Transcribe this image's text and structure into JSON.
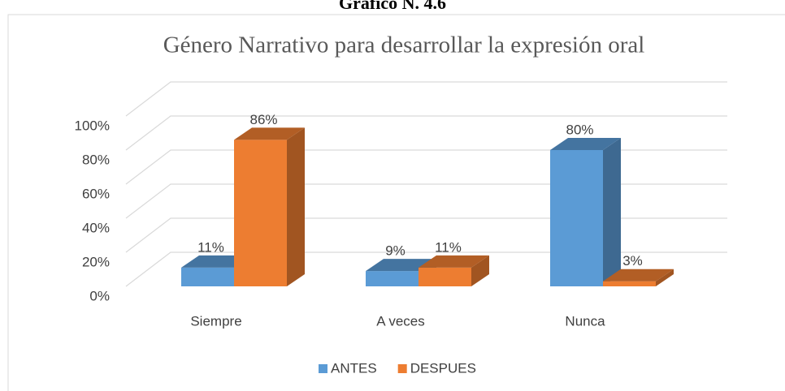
{
  "header": "Gráfico N. 4.6",
  "chart_data": {
    "type": "bar3d",
    "title": "Género Narrativo para desarrollar la expresión oral",
    "categories": [
      "Siempre",
      "A veces",
      "Nunca"
    ],
    "series": [
      {
        "name": "ANTES",
        "color": "#5b9bd5",
        "values": [
          11,
          9,
          80
        ],
        "value_labels": [
          "11%",
          "9%",
          "80%"
        ]
      },
      {
        "name": "DESPUES",
        "color": "#ed7d31",
        "values": [
          86,
          11,
          3
        ],
        "value_labels": [
          "86%",
          "11%",
          "3%"
        ]
      }
    ],
    "ylim": [
      0,
      100
    ],
    "yticks": [
      {
        "value": 0,
        "label": "0%"
      },
      {
        "value": 20,
        "label": "20%"
      },
      {
        "value": 40,
        "label": "40%"
      },
      {
        "value": 60,
        "label": "60%"
      },
      {
        "value": 80,
        "label": "80%"
      },
      {
        "value": 100,
        "label": "100%"
      }
    ],
    "grid": true,
    "legend": "bottom"
  }
}
